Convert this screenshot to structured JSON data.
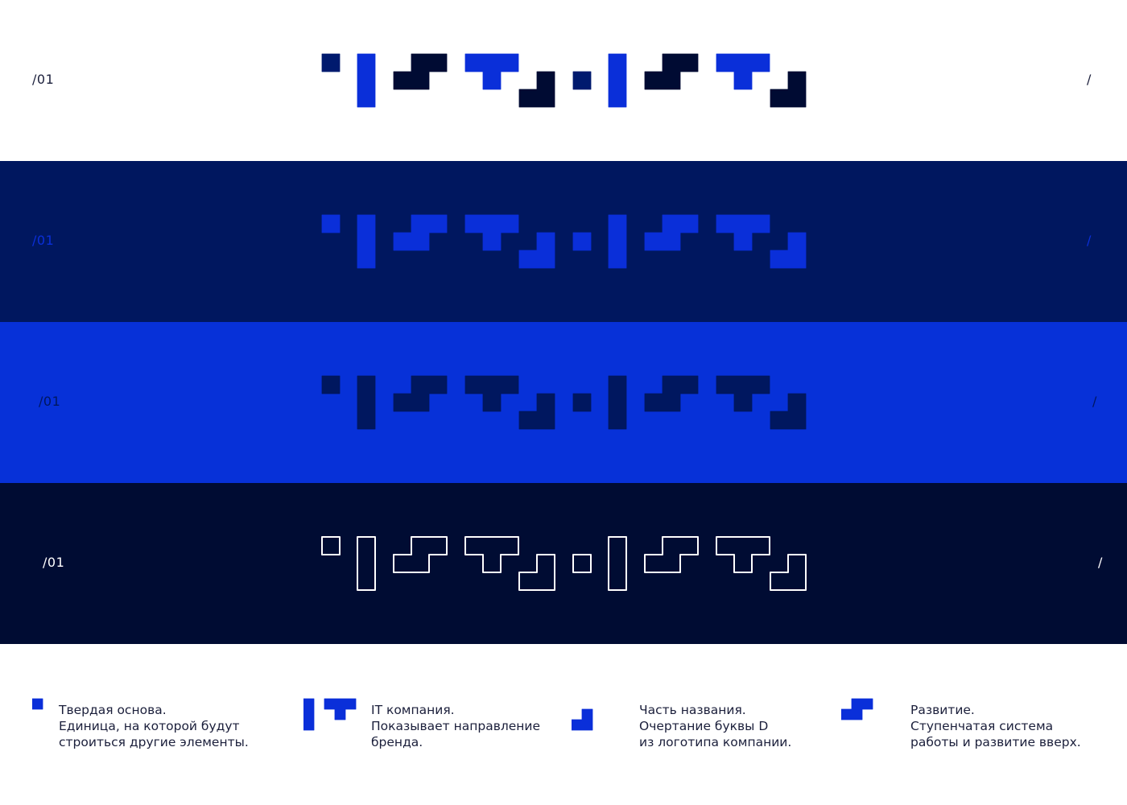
{
  "rows": [
    {
      "label_left": "/01",
      "label_right": "/",
      "bg": "#ffffff",
      "label_color": "#1b1f3b",
      "style": "fill",
      "colors": [
        "#001a6e",
        "#0a2fd9",
        "#000b33",
        "#0a2fd9",
        "#000b33",
        "#001a6e",
        "#0a2fd9",
        "#000b33",
        "#0a2fd9",
        "#000b33"
      ]
    },
    {
      "label_left": "/01",
      "label_right": "/",
      "bg": "#00175f",
      "label_color": "#0a2fd9",
      "style": "fill",
      "colors": [
        "#0a2fd9",
        "#0a2fd9",
        "#0a2fd9",
        "#0a2fd9",
        "#0a2fd9",
        "#0a2fd9",
        "#0a2fd9",
        "#0a2fd9",
        "#0a2fd9",
        "#0a2fd9"
      ]
    },
    {
      "label_left": "/01",
      "label_right": "/",
      "bg": "#0731d8",
      "label_color": "#00175f",
      "style": "fill",
      "colors": [
        "#00175f",
        "#00175f",
        "#00175f",
        "#00175f",
        "#00175f",
        "#00175f",
        "#00175f",
        "#00175f",
        "#00175f",
        "#00175f"
      ]
    },
    {
      "label_left": "/01",
      "label_right": "/",
      "bg": "#000c33",
      "label_color": "#ffffff",
      "style": "outline",
      "colors": [
        "#ffffff",
        "#ffffff",
        "#ffffff",
        "#ffffff",
        "#ffffff",
        "#ffffff",
        "#ffffff",
        "#ffffff",
        "#ffffff",
        "#ffffff"
      ]
    }
  ],
  "legend": [
    {
      "icon": "square-icon",
      "lines": [
        "Твердая основа.",
        "Единица, на которой будут",
        "строиться другие элементы."
      ]
    },
    {
      "icon": "it-icon",
      "lines": [
        "IT компания.",
        "Показывает направление",
        "бренда."
      ]
    },
    {
      "icon": "d-corner-icon",
      "lines": [
        "Часть названия.",
        "Очертание буквы D",
        "из логотипа компании."
      ]
    },
    {
      "icon": "stair-icon",
      "lines": [
        "Развитие.",
        "Ступенчатая система",
        "работы и развитие вверх."
      ]
    }
  ],
  "accent": "#0a2fd9"
}
